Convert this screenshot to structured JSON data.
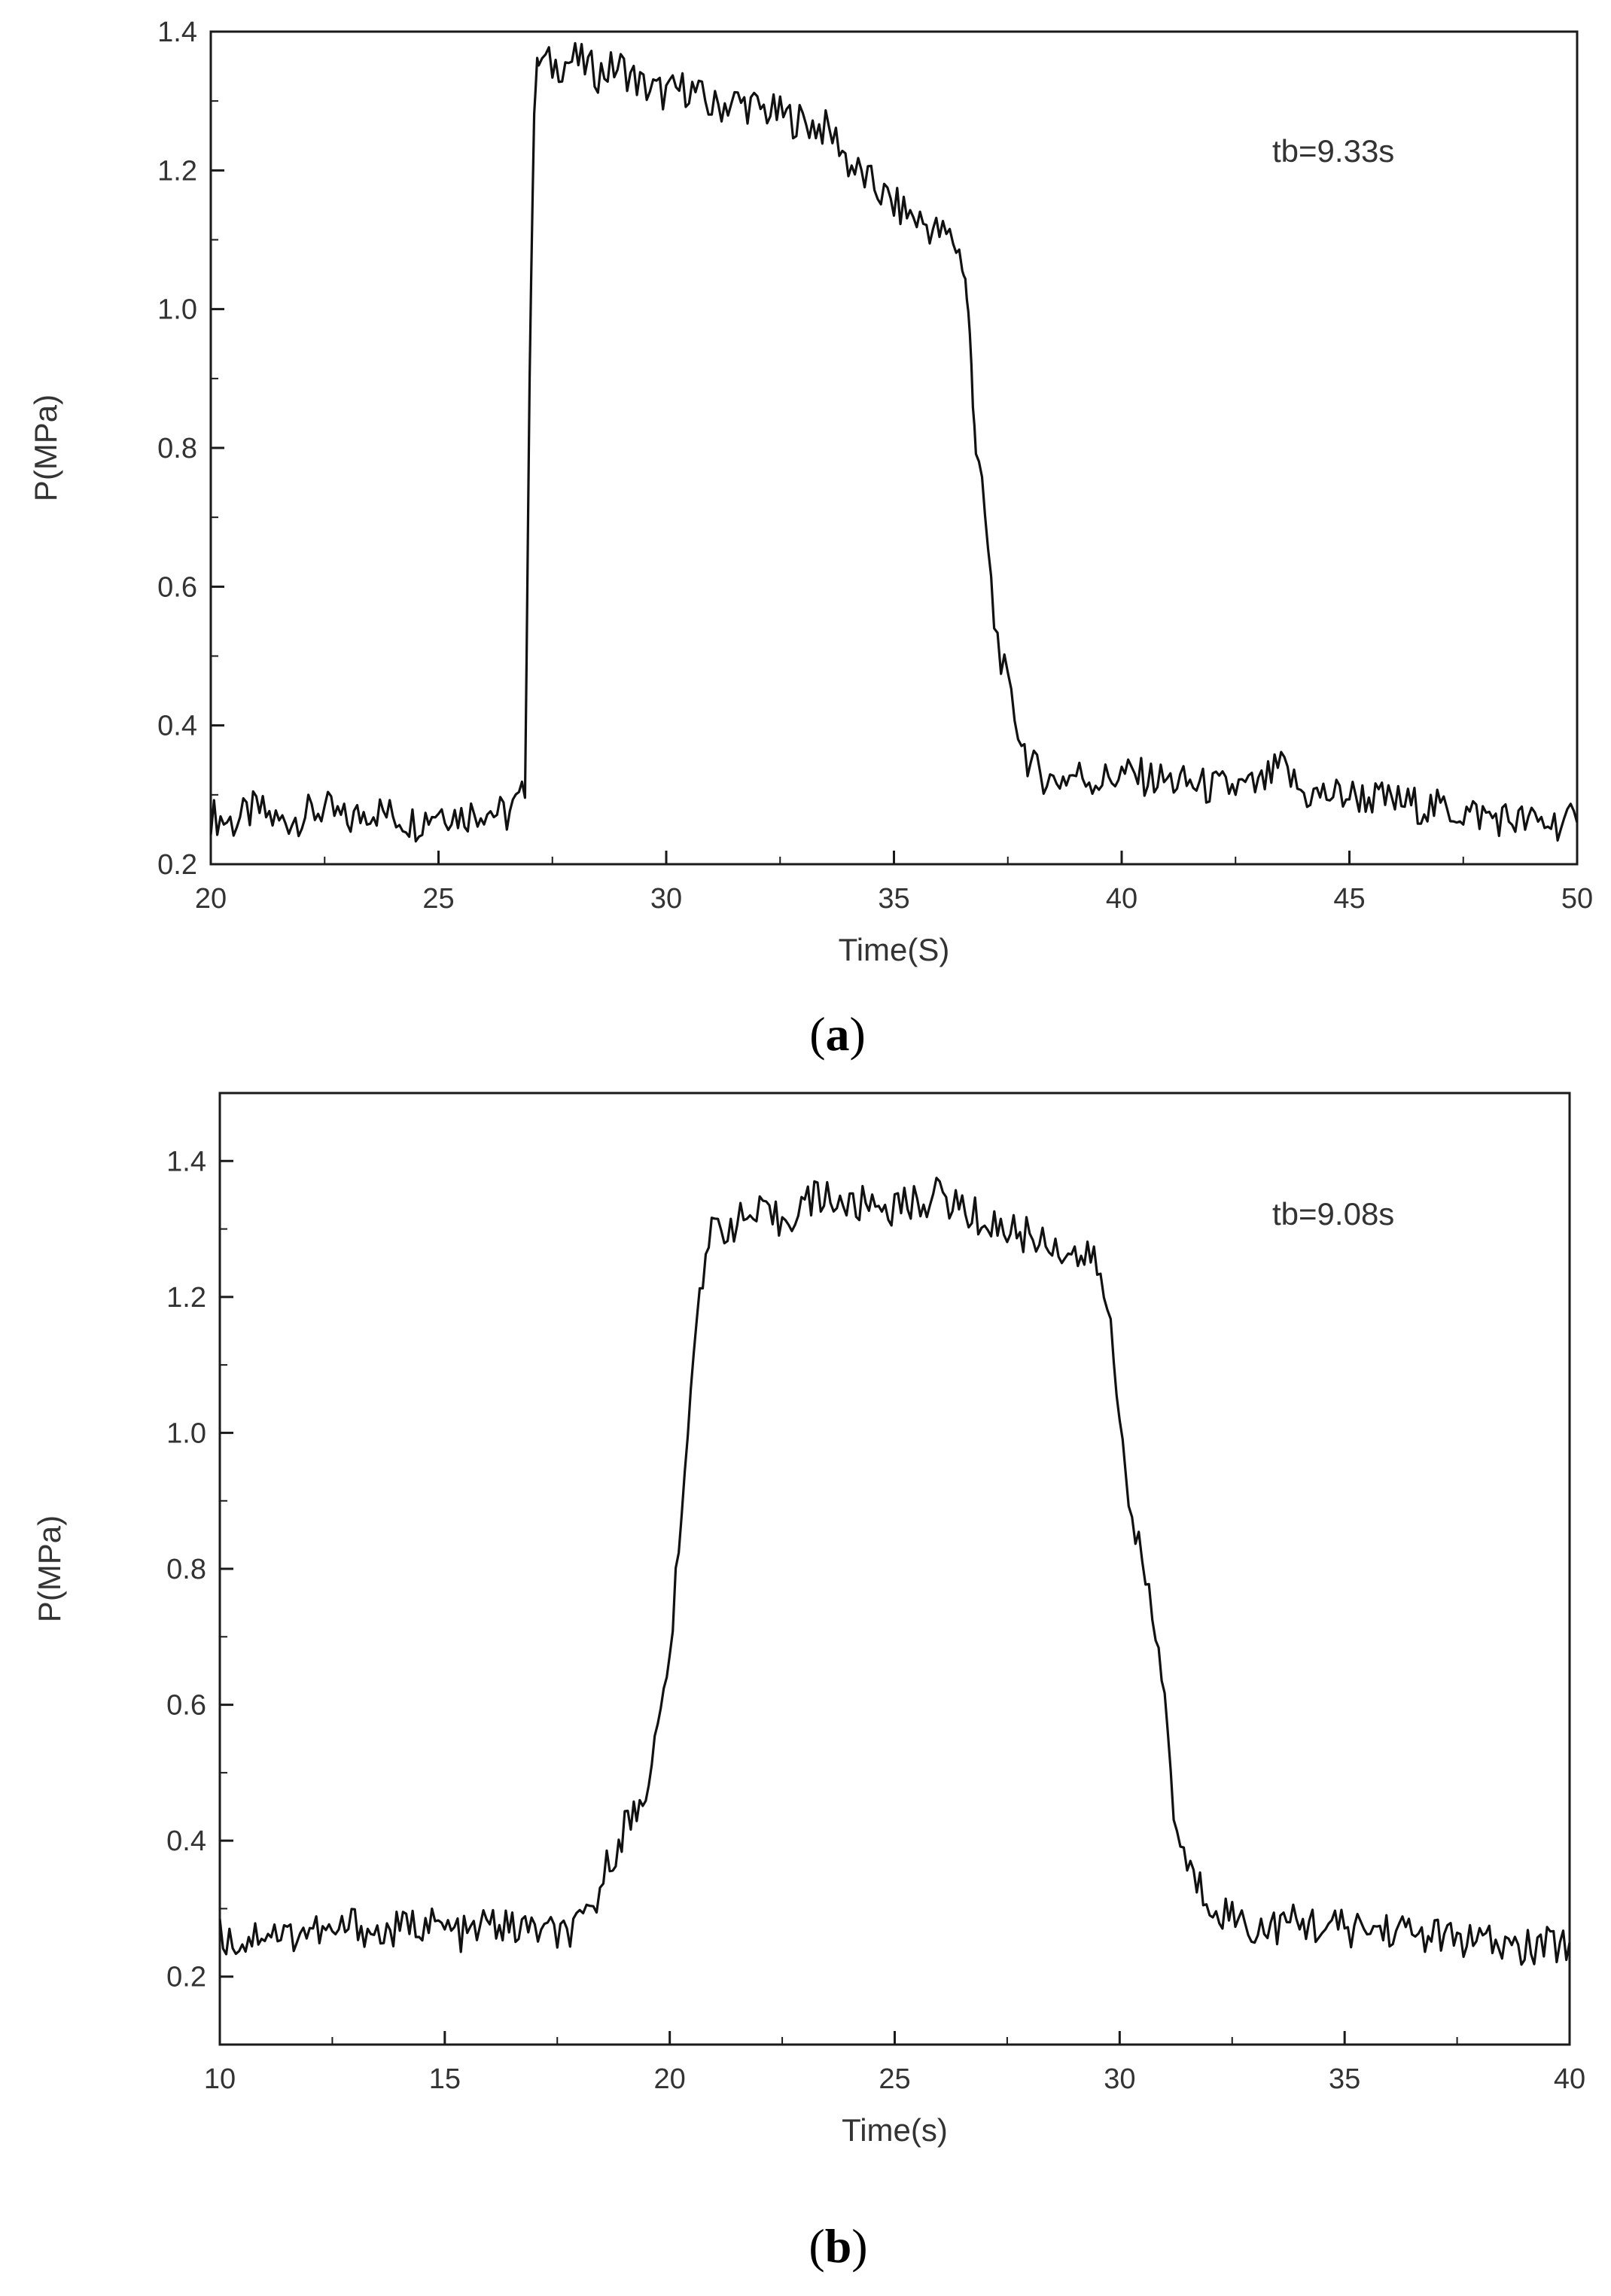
{
  "chart_data": [
    {
      "type": "line",
      "panel_label": "a",
      "xlabel": "Time(S)",
      "ylabel": "P(MPa)",
      "annotation": "tb=9.33s",
      "xlim": [
        20,
        50
      ],
      "ylim": [
        0.2,
        1.4
      ],
      "xticks": [
        20,
        25,
        30,
        35,
        40,
        45,
        50
      ],
      "xtick_labels": [
        "20",
        "25",
        "30",
        "35",
        "40",
        "45",
        "50"
      ],
      "yticks": [
        0.2,
        0.4,
        0.6,
        0.8,
        1.0,
        1.2,
        1.4
      ],
      "ytick_labels": [
        "0.2",
        "0.4",
        "0.6",
        "0.8",
        "1.0",
        "1.2",
        "1.4"
      ],
      "grid": false,
      "series": [
        {
          "x": [
            20,
            20.5,
            21,
            21.5,
            22,
            22.5,
            23,
            23.5,
            24,
            24.5,
            25,
            25.5,
            26,
            26.5,
            26.9,
            27.0,
            27.1,
            27.2,
            27.5,
            28,
            28.5,
            29,
            29.5,
            30,
            30.5,
            31,
            31.5,
            32,
            32.5,
            33,
            33.5,
            33.8,
            34,
            34.5,
            35,
            35.5,
            36,
            36.3,
            36.5,
            36.6,
            36.7,
            36.8,
            37.0,
            37.2,
            37.5,
            37.8,
            38,
            38.5,
            39,
            39.5,
            40,
            41,
            42,
            43,
            43.5,
            44,
            45,
            46,
            47,
            48,
            49,
            50
          ],
          "y": [
            0.27,
            0.26,
            0.28,
            0.26,
            0.27,
            0.28,
            0.26,
            0.28,
            0.27,
            0.26,
            0.28,
            0.27,
            0.28,
            0.27,
            0.3,
            0.9,
            1.3,
            1.36,
            1.35,
            1.36,
            1.34,
            1.35,
            1.32,
            1.31,
            1.32,
            1.29,
            1.3,
            1.29,
            1.28,
            1.27,
            1.26,
            1.24,
            1.21,
            1.18,
            1.15,
            1.13,
            1.11,
            1.1,
            1.07,
            1.02,
            0.92,
            0.8,
            0.7,
            0.55,
            0.45,
            0.38,
            0.34,
            0.32,
            0.33,
            0.32,
            0.33,
            0.32,
            0.31,
            0.31,
            0.34,
            0.3,
            0.3,
            0.29,
            0.28,
            0.27,
            0.26,
            0.26
          ]
        }
      ]
    },
    {
      "type": "line",
      "panel_label": "b",
      "xlabel": "Time(s)",
      "ylabel": "P(MPa)",
      "annotation": "tb=9.08s",
      "xlim": [
        10,
        40
      ],
      "ylim": [
        0.1,
        1.5
      ],
      "xticks": [
        10,
        15,
        20,
        25,
        30,
        35,
        40
      ],
      "xtick_labels": [
        "10",
        "15",
        "20",
        "25",
        "30",
        "35",
        "40"
      ],
      "yticks": [
        0.2,
        0.4,
        0.6,
        0.8,
        1.0,
        1.2,
        1.4
      ],
      "ytick_labels": [
        "0.2",
        "0.4",
        "0.6",
        "0.8",
        "1.0",
        "1.2",
        "1.4"
      ],
      "grid": false,
      "series": [
        {
          "x": [
            10,
            10.5,
            11,
            11.5,
            12,
            12.5,
            13,
            13.5,
            14,
            14.5,
            15,
            15.5,
            16,
            16.5,
            17,
            17.5,
            18,
            18.3,
            18.6,
            19.0,
            19.4,
            19.8,
            20.0,
            20.2,
            20.4,
            20.6,
            20.8,
            21.0,
            21.5,
            22,
            22.5,
            23,
            23.5,
            24,
            24.5,
            25,
            25.5,
            26,
            26.5,
            27,
            27.5,
            28,
            28.5,
            29,
            29.5,
            29.8,
            30.0,
            30.2,
            30.5,
            30.8,
            31.0,
            31.2,
            31.5,
            32,
            32.5,
            33,
            34,
            35,
            36,
            37,
            38,
            39,
            40
          ],
          "y": [
            0.26,
            0.25,
            0.27,
            0.26,
            0.27,
            0.26,
            0.28,
            0.26,
            0.27,
            0.28,
            0.27,
            0.26,
            0.28,
            0.27,
            0.27,
            0.26,
            0.27,
            0.3,
            0.36,
            0.42,
            0.46,
            0.58,
            0.68,
            0.82,
            1.0,
            1.18,
            1.27,
            1.3,
            1.31,
            1.32,
            1.31,
            1.34,
            1.35,
            1.33,
            1.34,
            1.33,
            1.34,
            1.35,
            1.33,
            1.31,
            1.3,
            1.29,
            1.28,
            1.26,
            1.25,
            1.15,
            1.02,
            0.92,
            0.8,
            0.7,
            0.62,
            0.44,
            0.36,
            0.31,
            0.29,
            0.27,
            0.28,
            0.27,
            0.27,
            0.26,
            0.25,
            0.24,
            0.25
          ]
        }
      ]
    }
  ]
}
